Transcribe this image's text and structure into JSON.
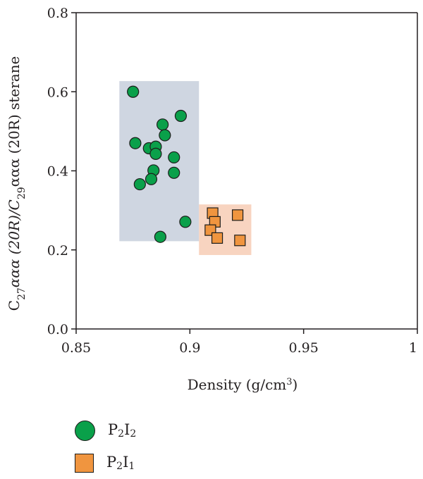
{
  "chart_data": {
    "type": "scatter",
    "title": "",
    "xlabel": "Density (g/cm³)",
    "ylabel": "C27ααα (20R)/C29ααα (20R) sterane",
    "xlim": [
      0.85,
      1.0
    ],
    "ylim": [
      0.0,
      0.8
    ],
    "x_ticks": [
      0.85,
      0.9,
      0.95,
      1.0
    ],
    "x_tick_labels": [
      "0.85",
      "0.9",
      "0.95",
      "1"
    ],
    "y_ticks": [
      0.0,
      0.2,
      0.4,
      0.6,
      0.8
    ],
    "y_tick_labels": [
      "0.0",
      "0.2",
      "0.4",
      "0.6",
      "0.8"
    ],
    "grid": false,
    "legend_position": "bottom-left",
    "regions": [
      {
        "series": "P2I2",
        "x": [
          0.869,
          0.904
        ],
        "y": [
          0.222,
          0.627
        ],
        "color": "#cfd6e1"
      },
      {
        "series": "P2I1",
        "x": [
          0.904,
          0.927
        ],
        "y": [
          0.187,
          0.315
        ],
        "color": "#f8d4c0"
      }
    ],
    "series": [
      {
        "name": "P2I2",
        "marker": "circle",
        "color": "#0aa04a",
        "points": [
          {
            "x": 0.875,
            "y": 0.6
          },
          {
            "x": 0.896,
            "y": 0.539
          },
          {
            "x": 0.888,
            "y": 0.517
          },
          {
            "x": 0.889,
            "y": 0.49
          },
          {
            "x": 0.876,
            "y": 0.47
          },
          {
            "x": 0.882,
            "y": 0.457
          },
          {
            "x": 0.885,
            "y": 0.461
          },
          {
            "x": 0.885,
            "y": 0.443
          },
          {
            "x": 0.893,
            "y": 0.434
          },
          {
            "x": 0.884,
            "y": 0.401
          },
          {
            "x": 0.893,
            "y": 0.395
          },
          {
            "x": 0.883,
            "y": 0.379
          },
          {
            "x": 0.878,
            "y": 0.366
          },
          {
            "x": 0.898,
            "y": 0.271
          },
          {
            "x": 0.887,
            "y": 0.233
          }
        ]
      },
      {
        "name": "P2I1",
        "marker": "square",
        "color": "#f0953f",
        "points": [
          {
            "x": 0.91,
            "y": 0.293
          },
          {
            "x": 0.921,
            "y": 0.288
          },
          {
            "x": 0.911,
            "y": 0.271
          },
          {
            "x": 0.909,
            "y": 0.25
          },
          {
            "x": 0.912,
            "y": 0.23
          },
          {
            "x": 0.922,
            "y": 0.224
          }
        ]
      }
    ]
  },
  "legend": {
    "items": [
      {
        "base": "P",
        "sub1": "2",
        "mid": "I",
        "sub2": "2"
      },
      {
        "base": "P",
        "sub1": "2",
        "mid": "I",
        "sub2": "1"
      }
    ]
  },
  "axis_text": {
    "ylabel_c": "C",
    "ylabel_sub1": "27",
    "ylabel_part1": "ααα (20R)/C",
    "ylabel_sub2": "29",
    "ylabel_part2": "ααα (20R) sterane",
    "xlabel_main": "Density (g/cm",
    "xlabel_sup": "3",
    "xlabel_end": ")"
  }
}
